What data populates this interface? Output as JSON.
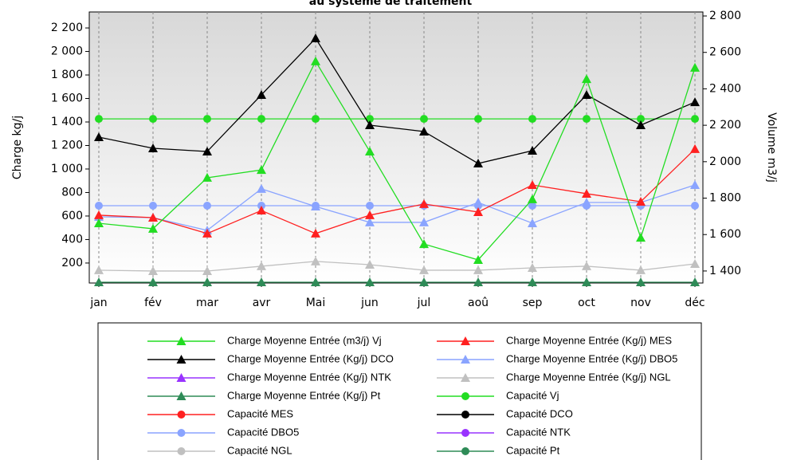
{
  "chart_data": {
    "type": "line",
    "title": "au système de traitement",
    "y_label": "Charge kg/j",
    "y2_label": "Volume m3/j",
    "categories": [
      "jan",
      "fév",
      "mar",
      "avr",
      "Mai",
      "jun",
      "jul",
      "aoû",
      "sep",
      "oct",
      "nov",
      "déc"
    ],
    "ylim": [
      30,
      2336
    ],
    "yticks": [
      200,
      400,
      600,
      800,
      {
        "value": 1000,
        "label": "1 000"
      },
      {
        "value": 1200,
        "label": "1 200"
      },
      {
        "value": 1400,
        "label": "1 400"
      },
      {
        "value": 1600,
        "label": "1 600"
      },
      {
        "value": 1800,
        "label": "1 800"
      },
      {
        "value": 2000,
        "label": "2 000"
      },
      {
        "value": 2200,
        "label": "2 200"
      }
    ],
    "y2lim": [
      1334,
      2822
    ],
    "y2ticks": [
      {
        "value": 1400,
        "label": "1 400"
      },
      {
        "value": 1600,
        "label": "1 600"
      },
      {
        "value": 1800,
        "label": "1 800"
      },
      {
        "value": 2000,
        "label": "2 000"
      },
      {
        "value": 2200,
        "label": "2 200"
      },
      {
        "value": 2400,
        "label": "2 400"
      },
      {
        "value": 2600,
        "label": "2 600"
      },
      {
        "value": 2800,
        "label": "2 800"
      }
    ],
    "grid": true,
    "series": [
      {
        "name": "Charge Moyenne Entrée (m3/j) Vj",
        "color": "#22dd22",
        "marker": "triangle",
        "axis": "y2",
        "values": [
          1662,
          1632,
          1912,
          1955,
          2551,
          2056,
          1548,
          1461,
          1794,
          2454,
          1583,
          2516
        ]
      },
      {
        "name": "Charge Moyenne Entrée (Kg/j) MES",
        "color": "#ff2020",
        "marker": "triangle",
        "values": [
          607,
          586,
          451,
          647,
          451,
          607,
          702,
          634,
          864,
          790,
          722,
          1170
        ]
      },
      {
        "name": "Charge Moyenne Entrée (Kg/j) DCO",
        "color": "#000000",
        "marker": "triangle",
        "values": [
          1271,
          1176,
          1149,
          1631,
          2112,
          1373,
          1319,
          1047,
          1156,
          1631,
          1373,
          1569
        ]
      },
      {
        "name": "Charge Moyenne Entrée (Kg/j) DBO5",
        "color": "#8aa4ff",
        "marker": "triangle",
        "values": [
          593,
          586,
          478,
          831,
          681,
          546,
          546,
          715,
          539,
          715,
          715,
          864
        ]
      },
      {
        "name": "Charge Moyenne Entrée (Kg/j) NTK",
        "color": "#9933ff",
        "marker": "triangle",
        "values": [
          null,
          null,
          null,
          null,
          null,
          null,
          null,
          null,
          null,
          null,
          null,
          null
        ]
      },
      {
        "name": "Charge Moyenne Entrée (Kg/j) NGL",
        "color": "#c0c0c0",
        "marker": "triangle",
        "values": [
          139,
          132,
          132,
          173,
          214,
          186,
          139,
          139,
          159,
          173,
          139,
          193
        ]
      },
      {
        "name": "Charge Moyenne Entrée (Kg/j) Pt",
        "color": "#2e8b57",
        "marker": "triangle",
        "values": [
          37,
          37,
          37,
          37,
          37,
          37,
          37,
          37,
          37,
          37,
          37,
          37
        ]
      },
      {
        "name": "Capacité Vj",
        "color": "#22dd22",
        "marker": "circle",
        "axis": "y2",
        "values": [
          2235,
          2235,
          2235,
          2235,
          2235,
          2235,
          2235,
          2235,
          2235,
          2235,
          2235,
          2235
        ]
      },
      {
        "name": "Capacité MES",
        "color": "#ff2020",
        "marker": "circle",
        "values": [
          null,
          null,
          null,
          null,
          null,
          null,
          null,
          null,
          null,
          null,
          null,
          null
        ]
      },
      {
        "name": "Capacité DCO",
        "color": "#000000",
        "marker": "circle",
        "values": [
          null,
          null,
          null,
          null,
          null,
          null,
          null,
          null,
          null,
          null,
          null,
          null
        ]
      },
      {
        "name": "Capacité DBO5",
        "color": "#8aa4ff",
        "marker": "circle",
        "values": [
          688,
          688,
          688,
          688,
          688,
          688,
          688,
          688,
          688,
          688,
          688,
          688
        ]
      },
      {
        "name": "Capacité NTK",
        "color": "#9933ff",
        "marker": "circle",
        "values": [
          null,
          null,
          null,
          null,
          null,
          null,
          null,
          null,
          null,
          null,
          null,
          null
        ]
      },
      {
        "name": "Capacité NGL",
        "color": "#c0c0c0",
        "marker": "circle",
        "values": [
          null,
          null,
          null,
          null,
          null,
          null,
          null,
          null,
          null,
          null,
          null,
          null
        ]
      },
      {
        "name": "Capacité Pt",
        "color": "#2e8b57",
        "marker": "circle",
        "values": [
          null,
          null,
          null,
          null,
          null,
          null,
          null,
          null,
          null,
          null,
          null,
          null
        ]
      }
    ]
  }
}
